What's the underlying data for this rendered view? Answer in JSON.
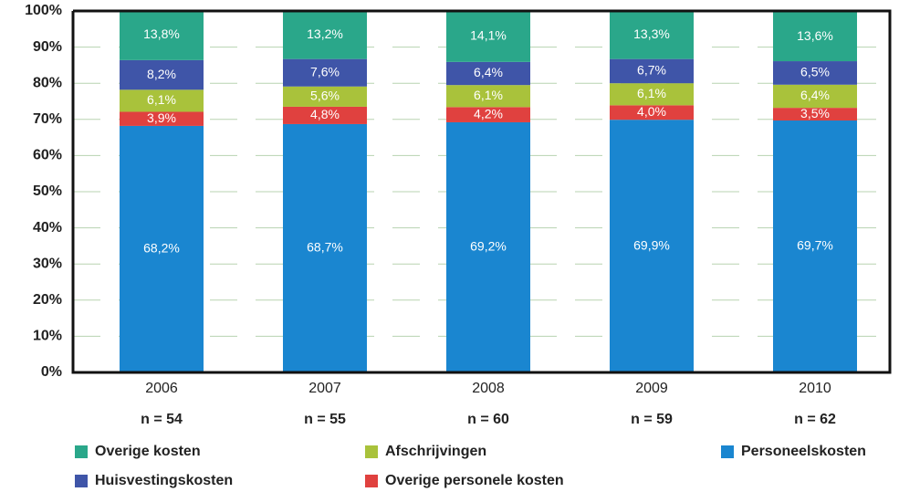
{
  "chart_data": {
    "type": "stacked_bar",
    "categories": [
      "2006",
      "2007",
      "2008",
      "2009",
      "2010"
    ],
    "n_labels": [
      "n = 54",
      "n = 55",
      "n = 60",
      "n = 59",
      "n = 62"
    ],
    "ylim": [
      0,
      100
    ],
    "yticks": [
      {
        "value": 0,
        "label": "0%"
      },
      {
        "value": 10,
        "label": "10%"
      },
      {
        "value": 20,
        "label": "20%"
      },
      {
        "value": 30,
        "label": "30%"
      },
      {
        "value": 40,
        "label": "40%"
      },
      {
        "value": 50,
        "label": "50%"
      },
      {
        "value": 60,
        "label": "60%"
      },
      {
        "value": 70,
        "label": "70%"
      },
      {
        "value": 80,
        "label": "80%"
      },
      {
        "value": 90,
        "label": "90%"
      },
      {
        "value": 100,
        "label": "100%"
      }
    ],
    "grid": true,
    "series": [
      {
        "name": "Personeelskosten",
        "color": "#1a86d0",
        "values": [
          68.2,
          68.7,
          69.2,
          69.9,
          69.7
        ],
        "value_labels": [
          "68,2%",
          "68,7%",
          "69,2%",
          "69,9%",
          "69,7%"
        ]
      },
      {
        "name": "Overige personele kosten",
        "color": "#e0413f",
        "values": [
          3.9,
          4.8,
          4.2,
          4.0,
          3.5
        ],
        "value_labels": [
          "3,9%",
          "4,8%",
          "4,2%",
          "4,0%",
          "3,5%"
        ]
      },
      {
        "name": "Afschrijvingen",
        "color": "#a9c23b",
        "values": [
          6.1,
          5.6,
          6.1,
          6.1,
          6.4
        ],
        "value_labels": [
          "6,1%",
          "5,6%",
          "6,1%",
          "6,1%",
          "6,4%"
        ]
      },
      {
        "name": "Huisvestingskosten",
        "color": "#3f55a8",
        "values": [
          8.2,
          7.6,
          6.4,
          6.7,
          6.5
        ],
        "value_labels": [
          "8,2%",
          "7,6%",
          "6,4%",
          "6,7%",
          "6,5%"
        ]
      },
      {
        "name": "Overige kosten",
        "color": "#2aa78a",
        "values": [
          13.8,
          13.2,
          14.1,
          13.3,
          13.6
        ],
        "value_labels": [
          "13,8%",
          "13,2%",
          "14,1%",
          "13,3%",
          "13,6%"
        ]
      }
    ]
  }
}
